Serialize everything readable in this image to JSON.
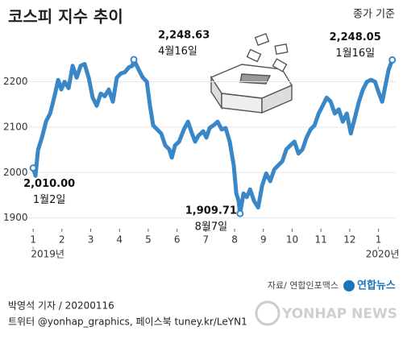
{
  "chart_data": {
    "type": "line",
    "title": "코스피 지수 추이",
    "note": "종가 기준",
    "x": [
      1.0,
      1.08,
      1.17,
      1.31,
      1.45,
      1.59,
      1.73,
      1.87,
      1.98,
      2.09,
      2.23,
      2.37,
      2.51,
      2.65,
      2.79,
      2.93,
      3.07,
      3.21,
      3.35,
      3.49,
      3.63,
      3.77,
      3.91,
      4.05,
      4.19,
      4.33,
      4.45,
      4.5,
      4.67,
      4.81,
      4.95,
      5.06,
      5.17,
      5.31,
      5.45,
      5.59,
      5.73,
      5.82,
      5.93,
      6.07,
      6.24,
      6.38,
      6.52,
      6.63,
      6.74,
      6.91,
      7.02,
      7.13,
      7.27,
      7.41,
      7.55,
      7.69,
      7.83,
      7.97,
      8.06,
      8.14,
      8.19,
      8.31,
      8.42,
      8.54,
      8.68,
      8.82,
      8.96,
      9.1,
      9.24,
      9.38,
      9.52,
      9.66,
      9.8,
      9.94,
      10.08,
      10.22,
      10.36,
      10.5,
      10.64,
      10.78,
      10.92,
      11.06,
      11.2,
      11.34,
      11.48,
      11.62,
      11.76,
      11.9,
      12.04,
      12.18,
      12.32,
      12.46,
      12.6,
      12.74,
      12.88,
      13.02,
      13.13,
      13.24,
      13.35,
      13.48
    ],
    "values": [
      2010.0,
      1993,
      2050,
      2078,
      2113,
      2130,
      2165,
      2204,
      2183,
      2200,
      2186,
      2235,
      2209,
      2235,
      2239,
      2209,
      2165,
      2147,
      2174,
      2168,
      2183,
      2156,
      2209,
      2218,
      2221,
      2232,
      2235,
      2248.63,
      2226,
      2209,
      2200,
      2147,
      2104,
      2095,
      2086,
      2060,
      2051,
      2033,
      2060,
      2068,
      2095,
      2112,
      2086,
      2068,
      2081,
      2091,
      2077,
      2098,
      2104,
      2112,
      2095,
      2098,
      2068,
      2016,
      1954,
      1937,
      1909.71,
      1954,
      1946,
      1963,
      1937,
      1923,
      1972,
      1998,
      1981,
      2007,
      2016,
      2025,
      2051,
      2060,
      2068,
      2042,
      2051,
      2077,
      2095,
      2104,
      2130,
      2147,
      2165,
      2156,
      2130,
      2139,
      2112,
      2130,
      2086,
      2121,
      2156,
      2183,
      2200,
      2204,
      2200,
      2174,
      2156,
      2191,
      2226,
      2248.05
    ],
    "value_labels": [
      "2,010.00",
      null,
      null,
      null,
      null,
      null,
      null,
      null,
      null,
      null,
      null,
      null,
      null,
      null,
      null,
      null,
      null,
      null,
      null,
      null,
      null,
      null,
      null,
      null,
      null,
      null,
      null,
      "2,248.63",
      null,
      null,
      null,
      null,
      null,
      null,
      null,
      null,
      null,
      null,
      null,
      null,
      null,
      null,
      null,
      null,
      null,
      null,
      null,
      null,
      null,
      null,
      null,
      null,
      null,
      null,
      null,
      null,
      "1,909.71",
      null,
      null,
      null,
      null,
      null,
      null,
      null,
      null,
      null,
      null,
      null,
      null,
      null,
      null,
      null,
      null,
      null,
      null,
      null,
      null,
      null,
      null,
      null,
      null,
      null,
      null,
      null,
      null,
      null,
      null,
      null,
      null,
      null,
      null,
      null,
      null,
      null,
      null,
      "2,248.05"
    ],
    "date_labels": [
      "1월2일",
      null,
      null,
      null,
      null,
      null,
      null,
      null,
      null,
      null,
      null,
      null,
      null,
      null,
      null,
      null,
      null,
      null,
      null,
      null,
      null,
      null,
      null,
      null,
      null,
      null,
      null,
      "4월16일",
      null,
      null,
      null,
      null,
      null,
      null,
      null,
      null,
      null,
      null,
      null,
      null,
      null,
      null,
      null,
      null,
      null,
      null,
      null,
      null,
      null,
      null,
      null,
      null,
      null,
      null,
      null,
      null,
      "8월7일",
      null,
      null,
      null,
      null,
      null,
      null,
      null,
      null,
      null,
      null,
      null,
      null,
      null,
      null,
      null,
      null,
      null,
      null,
      null,
      null,
      null,
      null,
      null,
      null,
      null,
      null,
      null,
      null,
      null,
      null,
      null,
      null,
      null,
      null,
      null,
      null,
      null,
      null,
      "1월16일"
    ],
    "color": "#3a87c8",
    "xlim": [
      0.8,
      13.6
    ],
    "xticks": [
      {
        "value": 1,
        "label": "1"
      },
      {
        "value": 2,
        "label": "2"
      },
      {
        "value": 3,
        "label": "3"
      },
      {
        "value": 4,
        "label": "4"
      },
      {
        "value": 5,
        "label": "5"
      },
      {
        "value": 6,
        "label": "6"
      },
      {
        "value": 7,
        "label": "7"
      },
      {
        "value": 8,
        "label": "8"
      },
      {
        "value": 9,
        "label": "9"
      },
      {
        "value": 10,
        "label": "10"
      },
      {
        "value": 11,
        "label": "11"
      },
      {
        "value": 12,
        "label": "12"
      },
      {
        "value": 13,
        "label": "1"
      }
    ],
    "years": [
      {
        "value": 1,
        "label": "2019년"
      },
      {
        "value": 13,
        "label": "2020년"
      }
    ],
    "ylim": [
      1880,
      2270
    ],
    "yticks": [
      1900,
      2000,
      2100,
      2200
    ],
    "grid": true,
    "source": "자료/ 연합인포맥스",
    "brand": "연합뉴스",
    "byline": "박영석 기자 / 20200116",
    "social": "트위터 @yonhap_graphics, 페이스북 tuney.kr/LeYN1",
    "watermark": "YONHAP NEWS"
  }
}
